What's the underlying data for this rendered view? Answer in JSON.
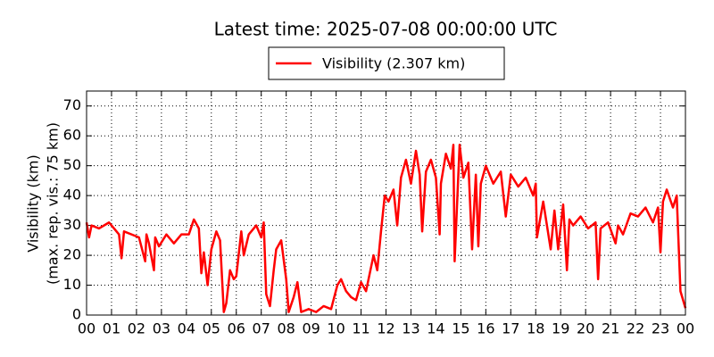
{
  "chart_data": {
    "type": "line",
    "title": "Latest time: 2025-07-08 00:00:00 UTC",
    "ylabel": [
      "Visibility (km)",
      "(max. rep. vis.: 75 km)"
    ],
    "x": [
      0,
      0.1,
      0.2,
      0.5,
      0.9,
      1.1,
      1.3,
      1.4,
      1.5,
      1.8,
      2.1,
      2.35,
      2.4,
      2.5,
      2.7,
      2.75,
      2.9,
      3.2,
      3.5,
      3.8,
      4.1,
      4.3,
      4.5,
      4.6,
      4.7,
      4.85,
      5.0,
      5.2,
      5.35,
      5.5,
      5.6,
      5.75,
      5.9,
      6.0,
      6.2,
      6.3,
      6.5,
      6.8,
      7.0,
      7.1,
      7.2,
      7.35,
      7.5,
      7.6,
      7.8,
      8.0,
      8.1,
      8.3,
      8.45,
      8.6,
      8.9,
      9.2,
      9.5,
      9.8,
      10.05,
      10.2,
      10.4,
      10.6,
      10.8,
      11.0,
      11.2,
      11.5,
      11.65,
      11.8,
      11.95,
      12.1,
      12.3,
      12.45,
      12.6,
      12.8,
      13.0,
      13.2,
      13.35,
      13.45,
      13.6,
      13.8,
      14.0,
      14.15,
      14.2,
      14.4,
      14.6,
      14.7,
      14.75,
      14.95,
      15.1,
      15.3,
      15.45,
      15.6,
      15.7,
      15.8,
      16.0,
      16.3,
      16.6,
      16.8,
      17.0,
      17.3,
      17.6,
      17.9,
      18.0,
      18.05,
      18.3,
      18.6,
      18.75,
      18.9,
      19.1,
      19.25,
      19.35,
      19.5,
      19.8,
      20.1,
      20.4,
      20.5,
      20.6,
      20.9,
      21.2,
      21.3,
      21.5,
      21.8,
      22.1,
      22.4,
      22.7,
      22.9,
      23.0,
      23.1,
      23.25,
      23.5,
      23.65,
      23.8,
      24
    ],
    "series": [
      {
        "name": "Visibility (2.307 km)",
        "color": "#ff0000",
        "values": [
          31,
          26,
          30,
          29,
          31,
          29,
          27,
          19,
          28,
          27,
          26,
          18,
          27,
          24,
          15,
          26,
          23,
          27,
          24,
          27,
          27,
          32,
          29,
          14,
          21,
          10,
          22,
          28,
          25,
          1,
          4,
          15,
          12,
          13,
          28,
          20,
          27,
          30,
          26,
          31,
          7,
          3,
          15,
          22,
          25,
          12,
          1,
          6,
          11,
          1,
          2,
          1,
          3,
          2,
          10,
          12,
          8,
          6,
          5,
          11,
          8,
          20,
          15,
          28,
          40,
          38,
          42,
          30,
          46,
          52,
          44,
          55,
          47,
          28,
          48,
          52,
          46,
          27,
          44,
          54,
          49,
          57,
          18,
          57,
          46,
          51,
          22,
          47,
          23,
          44,
          50,
          44,
          48,
          33,
          47,
          43,
          46,
          40,
          44,
          26,
          38,
          22,
          35,
          22,
          37,
          15,
          32,
          30,
          33,
          29,
          31,
          12,
          29,
          31,
          24,
          30,
          27,
          34,
          33,
          36,
          31,
          36,
          21,
          38,
          42,
          36,
          40,
          8,
          2.307
        ]
      }
    ],
    "xlim": [
      0,
      24
    ],
    "xticks": [
      {
        "value": 0,
        "label": "00"
      },
      {
        "value": 1,
        "label": "01"
      },
      {
        "value": 2,
        "label": "02"
      },
      {
        "value": 3,
        "label": "03"
      },
      {
        "value": 4,
        "label": "04"
      },
      {
        "value": 5,
        "label": "05"
      },
      {
        "value": 6,
        "label": "06"
      },
      {
        "value": 7,
        "label": "07"
      },
      {
        "value": 8,
        "label": "08"
      },
      {
        "value": 9,
        "label": "09"
      },
      {
        "value": 10,
        "label": "10"
      },
      {
        "value": 11,
        "label": "11"
      },
      {
        "value": 12,
        "label": "12"
      },
      {
        "value": 13,
        "label": "13"
      },
      {
        "value": 14,
        "label": "14"
      },
      {
        "value": 15,
        "label": "15"
      },
      {
        "value": 16,
        "label": "16"
      },
      {
        "value": 17,
        "label": "17"
      },
      {
        "value": 18,
        "label": "18"
      },
      {
        "value": 19,
        "label": "19"
      },
      {
        "value": 20,
        "label": "20"
      },
      {
        "value": 21,
        "label": "21"
      },
      {
        "value": 22,
        "label": "22"
      },
      {
        "value": 23,
        "label": "23"
      },
      {
        "value": 24,
        "label": "00"
      }
    ],
    "ylim": [
      0,
      75
    ],
    "yticks": [
      0,
      10,
      20,
      30,
      40,
      50,
      60,
      70
    ],
    "grid": true,
    "legend": "top"
  }
}
